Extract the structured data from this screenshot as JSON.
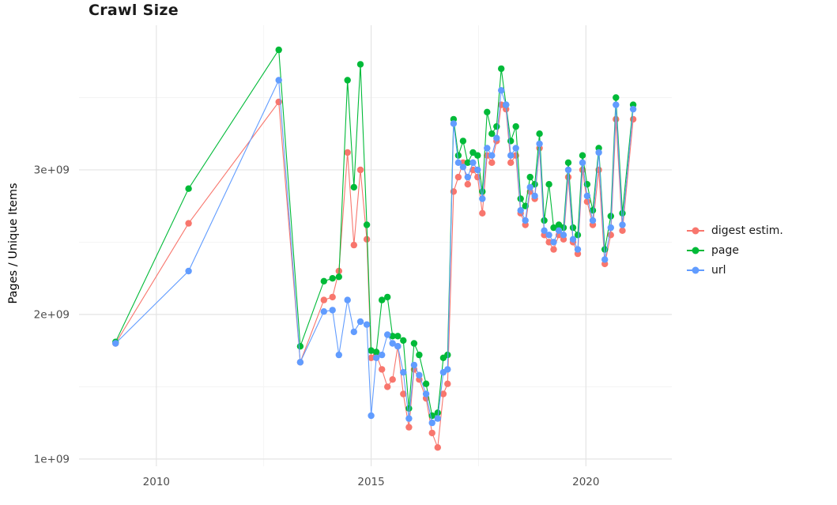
{
  "colors": {
    "background": "#ffffff",
    "grid_major": "#e4e4e4",
    "grid_minor": "#f3f3f3",
    "axis_text": "#4d4d4d",
    "title_text": "#1a1a1a"
  },
  "chart_data": {
    "type": "line",
    "title": "Crawl Size",
    "xlabel": "",
    "ylabel": "Pages / Unique Items",
    "y_unit": "pages (values in billions, 1e+09)",
    "grid": true,
    "legend_position": "right",
    "xlim": [
      2008.2,
      2022.0
    ],
    "ylim": [
      0.95,
      4.0
    ],
    "x_ticks": [
      {
        "value": 2010,
        "label": "2010"
      },
      {
        "value": 2015,
        "label": "2015"
      },
      {
        "value": 2020,
        "label": "2020"
      }
    ],
    "y_ticks": [
      {
        "value": 1,
        "label": "1e+09"
      },
      {
        "value": 2,
        "label": "2e+09"
      },
      {
        "value": 3,
        "label": "3e+09"
      }
    ],
    "x_minor_gridlines": [
      2012.5,
      2017.5
    ],
    "y_minor_gridlines": [
      1.5,
      2.5,
      3.5
    ],
    "x": [
      2009.05,
      2010.75,
      2012.85,
      2013.35,
      2013.9,
      2014.1,
      2014.25,
      2014.45,
      2014.6,
      2014.75,
      2014.9,
      2015.0,
      2015.12,
      2015.25,
      2015.38,
      2015.5,
      2015.62,
      2015.75,
      2015.88,
      2016.0,
      2016.12,
      2016.28,
      2016.42,
      2016.55,
      2016.68,
      2016.78,
      2016.92,
      2017.03,
      2017.14,
      2017.25,
      2017.37,
      2017.48,
      2017.59,
      2017.7,
      2017.81,
      2017.92,
      2018.03,
      2018.14,
      2018.25,
      2018.37,
      2018.48,
      2018.59,
      2018.7,
      2018.81,
      2018.92,
      2019.03,
      2019.14,
      2019.25,
      2019.37,
      2019.48,
      2019.59,
      2019.7,
      2019.81,
      2019.92,
      2020.03,
      2020.16,
      2020.3,
      2020.44,
      2020.58,
      2020.7,
      2020.85,
      2021.1
    ],
    "series": [
      {
        "name": "digest estim.",
        "key": "digest-estim",
        "color": "#F8766D",
        "values": [
          1.8,
          2.63,
          3.47,
          1.67,
          2.1,
          2.12,
          2.3,
          3.12,
          2.48,
          3.0,
          2.52,
          1.7,
          1.72,
          1.62,
          1.5,
          1.55,
          1.78,
          1.45,
          1.22,
          1.62,
          1.55,
          1.42,
          1.18,
          1.08,
          1.45,
          1.52,
          2.85,
          2.95,
          3.05,
          2.9,
          3.0,
          2.95,
          2.7,
          3.1,
          3.05,
          3.2,
          3.45,
          3.42,
          3.05,
          3.1,
          2.7,
          2.62,
          2.85,
          2.8,
          3.15,
          2.55,
          2.5,
          2.45,
          2.55,
          2.52,
          2.95,
          2.5,
          2.42,
          3.0,
          2.78,
          2.62,
          3.0,
          2.35,
          2.55,
          3.35,
          2.58,
          3.35
        ]
      },
      {
        "name": "page",
        "key": "page",
        "color": "#00BA38",
        "values": [
          1.81,
          2.87,
          3.83,
          1.78,
          2.23,
          2.25,
          2.26,
          3.62,
          2.88,
          3.73,
          2.62,
          1.75,
          1.74,
          2.1,
          2.12,
          1.85,
          1.85,
          1.82,
          1.35,
          1.8,
          1.72,
          1.52,
          1.3,
          1.32,
          1.7,
          1.72,
          3.35,
          3.1,
          3.2,
          3.05,
          3.12,
          3.1,
          2.85,
          3.4,
          3.25,
          3.3,
          3.7,
          3.45,
          3.2,
          3.3,
          2.8,
          2.75,
          2.95,
          2.9,
          3.25,
          2.65,
          2.9,
          2.6,
          2.62,
          2.6,
          3.05,
          2.6,
          2.55,
          3.1,
          2.9,
          2.72,
          3.15,
          2.45,
          2.68,
          3.5,
          2.7,
          3.45
        ]
      },
      {
        "name": "url",
        "key": "url",
        "color": "#619CFF",
        "values": [
          1.8,
          2.3,
          3.62,
          1.67,
          2.02,
          2.03,
          1.72,
          2.1,
          1.88,
          1.95,
          1.93,
          1.3,
          1.7,
          1.72,
          1.86,
          1.8,
          1.78,
          1.6,
          1.28,
          1.65,
          1.58,
          1.45,
          1.25,
          1.28,
          1.6,
          1.62,
          3.32,
          3.05,
          3.02,
          2.95,
          3.05,
          3.0,
          2.8,
          3.15,
          3.1,
          3.22,
          3.55,
          3.45,
          3.1,
          3.15,
          2.72,
          2.65,
          2.88,
          2.82,
          3.18,
          2.58,
          2.55,
          2.5,
          2.58,
          2.55,
          3.0,
          2.52,
          2.45,
          3.05,
          2.82,
          2.65,
          3.12,
          2.38,
          2.6,
          3.45,
          2.62,
          3.42
        ]
      }
    ]
  }
}
